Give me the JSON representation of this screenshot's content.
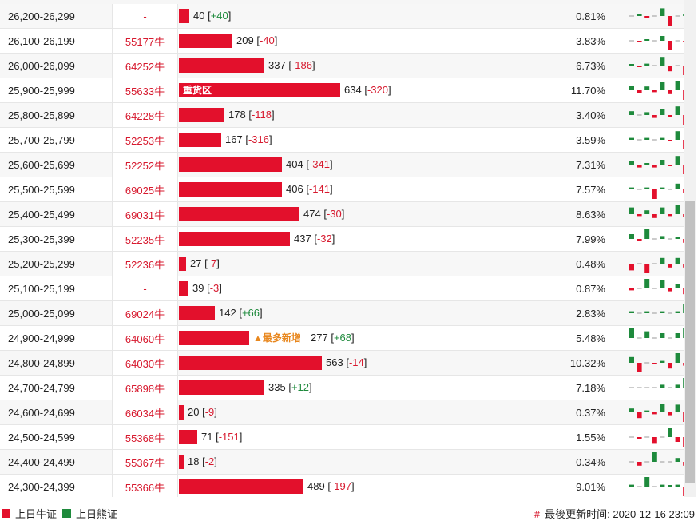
{
  "rows": [
    {
      "range": "26,200-26,299",
      "code": "-",
      "count": 40,
      "change": "+40",
      "pct": "0.81%",
      "bars": [
        0,
        0.1,
        -0.15,
        0,
        0.8,
        -1,
        0,
        0.15
      ]
    },
    {
      "range": "26,100-26,199",
      "code": "55177牛",
      "count": 209,
      "change": "-40",
      "pct": "3.83%",
      "bars": [
        0,
        -0.15,
        0.15,
        0,
        0.5,
        -1,
        0,
        -0.1
      ]
    },
    {
      "range": "26,000-26,099",
      "code": "64252牛",
      "count": 337,
      "change": "-186",
      "pct": "6.73%",
      "bars": [
        0.1,
        -0.1,
        0.2,
        0,
        0.9,
        -0.6,
        0,
        -1
      ]
    },
    {
      "range": "25,900-25,999",
      "code": "55633牛",
      "count": 634,
      "change": "-320",
      "pct": "11.70%",
      "tag": "重货区",
      "bars": [
        0.5,
        -0.3,
        0.4,
        -0.2,
        0.9,
        -0.4,
        1,
        -1
      ]
    },
    {
      "range": "25,800-25,899",
      "code": "64228牛",
      "count": 178,
      "change": "-118",
      "pct": "3.40%",
      "bars": [
        0.4,
        0,
        0.3,
        -0.3,
        0.6,
        -0.1,
        0.9,
        -1
      ]
    },
    {
      "range": "25,700-25,799",
      "code": "52253牛",
      "count": 167,
      "change": "-316",
      "pct": "3.59%",
      "bars": [
        0.2,
        0,
        0.2,
        0,
        0.2,
        -0.1,
        0.9,
        -1
      ]
    },
    {
      "range": "25,600-25,699",
      "code": "52252牛",
      "count": 404,
      "change": "-341",
      "pct": "7.31%",
      "bars": [
        0.4,
        -0.3,
        0.1,
        -0.3,
        0.5,
        -0.1,
        0.9,
        -1
      ]
    },
    {
      "range": "25,500-25,599",
      "code": "69025牛",
      "count": 406,
      "change": "-141",
      "pct": "7.57%",
      "bars": [
        0.2,
        0,
        0.2,
        -1,
        0.2,
        0,
        0.6,
        -0.4
      ]
    },
    {
      "range": "25,400-25,499",
      "code": "69031牛",
      "count": 474,
      "change": "-30",
      "pct": "8.63%",
      "bars": [
        0.7,
        -0.2,
        0.4,
        -0.4,
        0.7,
        -0.2,
        1,
        -0.3
      ]
    },
    {
      "range": "25,300-25,399",
      "code": "52235牛",
      "count": 437,
      "change": "-32",
      "pct": "7.99%",
      "bars": [
        0.5,
        -0.1,
        1,
        0,
        0.3,
        0,
        0.2,
        -0.4
      ]
    },
    {
      "range": "25,200-25,299",
      "code": "52236牛",
      "count": 27,
      "change": "-7",
      "pct": "0.48%",
      "bars": [
        -0.7,
        0,
        -1,
        0,
        0.6,
        -0.4,
        0.6,
        -0.4
      ]
    },
    {
      "range": "25,100-25,199",
      "code": "-",
      "count": 39,
      "change": "-3",
      "pct": "0.87%",
      "bars": [
        -0.2,
        0,
        1,
        0,
        0.9,
        -0.3,
        0.5,
        -0.6
      ]
    },
    {
      "range": "25,000-25,099",
      "code": "69024牛",
      "count": 142,
      "change": "+66",
      "pct": "2.83%",
      "bars": [
        0.2,
        0,
        0.2,
        0,
        0.2,
        0,
        0.2,
        1
      ]
    },
    {
      "range": "24,900-24,999",
      "code": "64060牛",
      "count": 277,
      "change": "+68",
      "pct": "5.48%",
      "hot": "▲最多新增",
      "bars": [
        1,
        0,
        0.7,
        0,
        0.5,
        0,
        0.5,
        1
      ]
    },
    {
      "range": "24,800-24,899",
      "code": "64030牛",
      "count": 563,
      "change": "-14",
      "pct": "10.32%",
      "bars": [
        0.6,
        -1,
        0,
        -0.1,
        0.2,
        -0.6,
        1,
        -0.3
      ]
    },
    {
      "range": "24,700-24,799",
      "code": "65898牛",
      "count": 335,
      "change": "+12",
      "pct": "7.18%",
      "bars": [
        0,
        0,
        0,
        0,
        0.3,
        0,
        0.3,
        1
      ]
    },
    {
      "range": "24,600-24,699",
      "code": "66034牛",
      "count": 20,
      "change": "-9",
      "pct": "0.37%",
      "bars": [
        0.4,
        -0.6,
        0.2,
        -0.2,
        0.9,
        -0.3,
        0.8,
        -1
      ]
    },
    {
      "range": "24,500-24,599",
      "code": "55368牛",
      "count": 71,
      "change": "-151",
      "pct": "1.55%",
      "bars": [
        0,
        -0.15,
        0,
        -0.7,
        0,
        1,
        -0.5,
        -1
      ]
    },
    {
      "range": "24,400-24,499",
      "code": "55367牛",
      "count": 18,
      "change": "-2",
      "pct": "0.34%",
      "bars": [
        0,
        -0.4,
        0,
        1,
        0,
        0,
        0.4,
        -0.4
      ]
    },
    {
      "range": "24,300-24,399",
      "code": "55366牛",
      "count": 489,
      "change": "-197",
      "pct": "9.01%",
      "bars": [
        0.2,
        0,
        1,
        0,
        0.2,
        0.1,
        0.2,
        -1
      ]
    }
  ],
  "legend": {
    "bull_label": "上日牛证",
    "bear_label": "上日熊证"
  },
  "updated": {
    "hash": "#",
    "label": "最後更新时间: 2020-12-16 23:09"
  },
  "colors": {
    "bull": "#e3102c",
    "bear": "#1e8a3c",
    "hot": "#e8871e"
  },
  "max_count": 634
}
